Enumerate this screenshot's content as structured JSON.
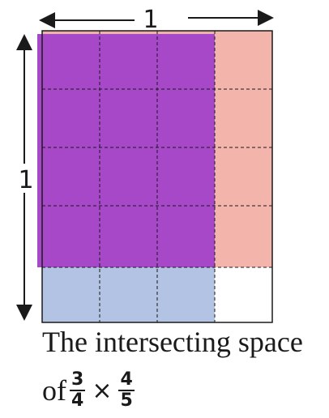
{
  "labels": {
    "top": "1",
    "left": "1"
  },
  "caption": {
    "line1": "The intersecting space",
    "prefix": "of",
    "times": "×",
    "frac1": {
      "num": "3",
      "den": "4"
    },
    "frac2": {
      "num": "4",
      "den": "5"
    }
  },
  "grid": {
    "columns": 4,
    "rows": 5,
    "shaded_columns": 3,
    "shaded_rows": 4
  },
  "colors": {
    "blue_region": "#b3c3e3",
    "red_region": "#f2b0a8",
    "overlap_region": "#a748c9",
    "lines": "#1a1a1a"
  }
}
